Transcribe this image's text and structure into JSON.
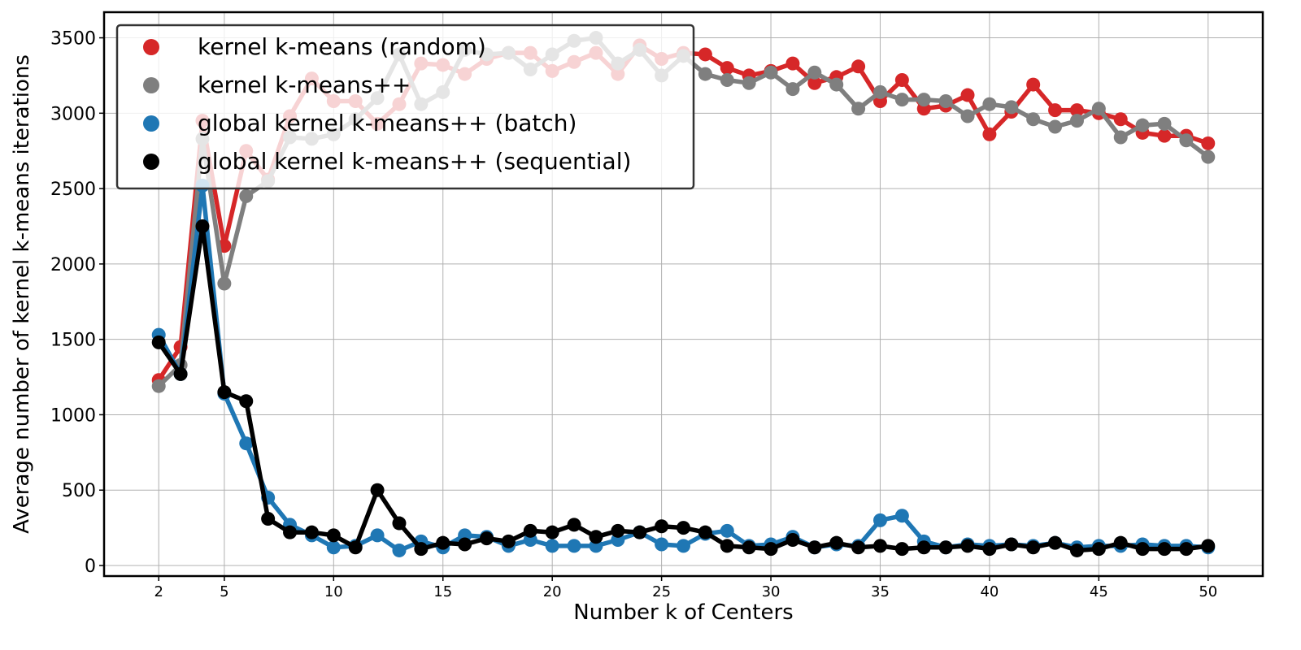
{
  "chart_data": {
    "type": "line",
    "title": "",
    "xlabel": "Number k of Centers",
    "ylabel": "Average number of kernel k-means iterations",
    "xlim": [
      -0.5,
      52.5
    ],
    "ylim": [
      -70,
      3670
    ],
    "xticks": [
      2,
      5,
      10,
      15,
      20,
      25,
      30,
      35,
      40,
      45,
      50
    ],
    "yticks": [
      0,
      500,
      1000,
      1500,
      2000,
      2500,
      3000,
      3500
    ],
    "grid": true,
    "legend_position": "top-left",
    "x": [
      2,
      3,
      4,
      5,
      6,
      7,
      8,
      9,
      10,
      11,
      12,
      13,
      14,
      15,
      16,
      17,
      18,
      19,
      20,
      21,
      22,
      23,
      24,
      25,
      26,
      27,
      28,
      29,
      30,
      31,
      32,
      33,
      34,
      35,
      36,
      37,
      38,
      39,
      40,
      41,
      42,
      43,
      44,
      45,
      46,
      47,
      48,
      49,
      50
    ],
    "series": [
      {
        "name": "kernel k-means (random)",
        "color": "#d62728",
        "values": [
          1230,
          1450,
          2950,
          2120,
          2750,
          2560,
          2980,
          3230,
          3080,
          3080,
          2930,
          3060,
          3330,
          3320,
          3260,
          3360,
          3400,
          3400,
          3280,
          3340,
          3400,
          3260,
          3450,
          3360,
          3400,
          3390,
          3300,
          3250,
          3280,
          3330,
          3200,
          3240,
          3310,
          3080,
          3220,
          3030,
          3050,
          3120,
          2860,
          3010,
          3190,
          3020,
          3020,
          3000,
          2960,
          2870,
          2850,
          2850,
          2800
        ]
      },
      {
        "name": "kernel k-means++",
        "color": "#7f7f7f",
        "values": [
          1190,
          1330,
          2830,
          1870,
          2450,
          2550,
          2840,
          2830,
          2860,
          2960,
          3100,
          3390,
          3060,
          3140,
          3420,
          3390,
          3400,
          3290,
          3390,
          3480,
          3500,
          3330,
          3420,
          3250,
          3380,
          3260,
          3220,
          3200,
          3270,
          3160,
          3270,
          3190,
          3030,
          3140,
          3090,
          3090,
          3080,
          2980,
          3060,
          3040,
          2960,
          2910,
          2950,
          3030,
          2840,
          2920,
          2930,
          2820,
          2710
        ]
      },
      {
        "name": "global kernel k-means++ (batch)",
        "color": "#1f77b4",
        "values": [
          1530,
          1270,
          2520,
          1140,
          810,
          450,
          270,
          200,
          120,
          130,
          200,
          100,
          160,
          120,
          200,
          190,
          130,
          170,
          130,
          130,
          130,
          170,
          220,
          140,
          130,
          210,
          230,
          130,
          140,
          190,
          120,
          140,
          130,
          300,
          330,
          160,
          120,
          140,
          130,
          140,
          130,
          150,
          120,
          130,
          130,
          140,
          130,
          130,
          120
        ]
      },
      {
        "name": "global kernel k-means++ (sequential)",
        "color": "#000000",
        "values": [
          1480,
          1270,
          2250,
          1150,
          1090,
          310,
          220,
          220,
          200,
          120,
          500,
          280,
          110,
          150,
          140,
          180,
          160,
          230,
          220,
          270,
          190,
          230,
          220,
          260,
          250,
          220,
          130,
          120,
          110,
          170,
          120,
          150,
          120,
          130,
          110,
          120,
          120,
          130,
          110,
          140,
          120,
          150,
          100,
          110,
          150,
          110,
          110,
          110,
          130
        ]
      }
    ]
  }
}
